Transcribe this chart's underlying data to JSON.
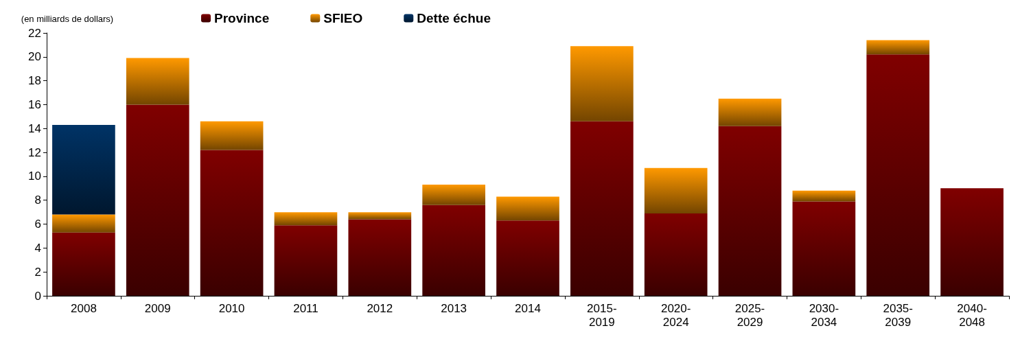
{
  "chart_data": {
    "type": "bar",
    "ylabel": "(en milliards de dollars)",
    "stacked": true,
    "categories": [
      "2008",
      "2009",
      "2010",
      "2011",
      "2012",
      "2013",
      "2014",
      "2015-2019",
      "2020-2024",
      "2025-2029",
      "2030-2034",
      "2035-2039",
      "2040-2048"
    ],
    "series": [
      {
        "name": "Province",
        "color": "#800000",
        "values": [
          5.3,
          16.0,
          12.2,
          5.9,
          6.4,
          7.6,
          6.3,
          14.6,
          6.9,
          14.2,
          7.9,
          20.2,
          9.0
        ]
      },
      {
        "name": "SFIEO",
        "color": "#ff9900",
        "values": [
          1.5,
          3.9,
          2.4,
          1.1,
          0.6,
          1.7,
          2.0,
          6.3,
          3.8,
          2.3,
          0.9,
          1.2,
          null
        ]
      },
      {
        "name": "Dette échue",
        "color": "#003366",
        "values": [
          7.5,
          null,
          null,
          null,
          null,
          null,
          null,
          null,
          null,
          null,
          null,
          null,
          null
        ]
      }
    ],
    "ylim": [
      0,
      22
    ],
    "yticks": [
      0,
      2,
      4,
      6,
      8,
      10,
      12,
      14,
      16,
      18,
      20,
      22
    ],
    "grid": false,
    "legend": "top"
  }
}
